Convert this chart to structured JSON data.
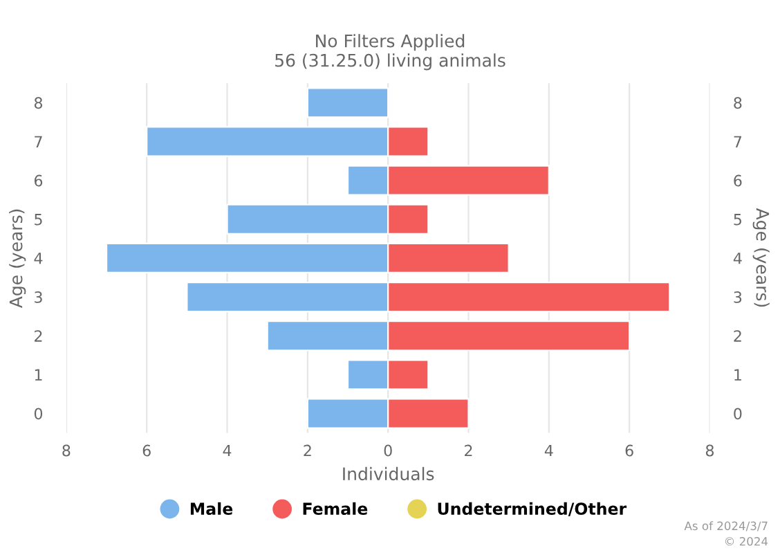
{
  "chart_data": {
    "type": "bar",
    "orientation": "horizontal",
    "stacked": true,
    "title": "No Filters Applied",
    "subtitle": "56 (31.25.0) living animals",
    "xlabel": "Individuals",
    "ylabel": "Age (years)",
    "y2label": "Age (years)",
    "categories": [
      "8",
      "7",
      "6",
      "5",
      "4",
      "3",
      "2",
      "1",
      "0"
    ],
    "series": [
      {
        "name": "Male",
        "color": "#7cb5ec",
        "values": [
          -2,
          -6,
          -1,
          -4,
          -7,
          -5,
          -3,
          -1,
          -2
        ]
      },
      {
        "name": "Female",
        "color": "#f45b5b",
        "values": [
          null,
          1,
          4,
          1,
          3,
          7,
          6,
          1,
          2
        ]
      },
      {
        "name": "Undetermined/Other",
        "color": "#e4d354",
        "values": [
          null,
          null,
          null,
          null,
          null,
          null,
          null,
          null,
          null
        ]
      }
    ],
    "xlim": [
      -8,
      8
    ],
    "xticks": [
      {
        "value": -8,
        "label": "8"
      },
      {
        "value": -6,
        "label": "6"
      },
      {
        "value": -4,
        "label": "4"
      },
      {
        "value": -2,
        "label": "2"
      },
      0,
      2,
      4,
      6,
      8
    ],
    "grid": "x",
    "legend": "bottom",
    "annotations": [
      "As of 2024/3/7",
      "© 2024"
    ]
  }
}
